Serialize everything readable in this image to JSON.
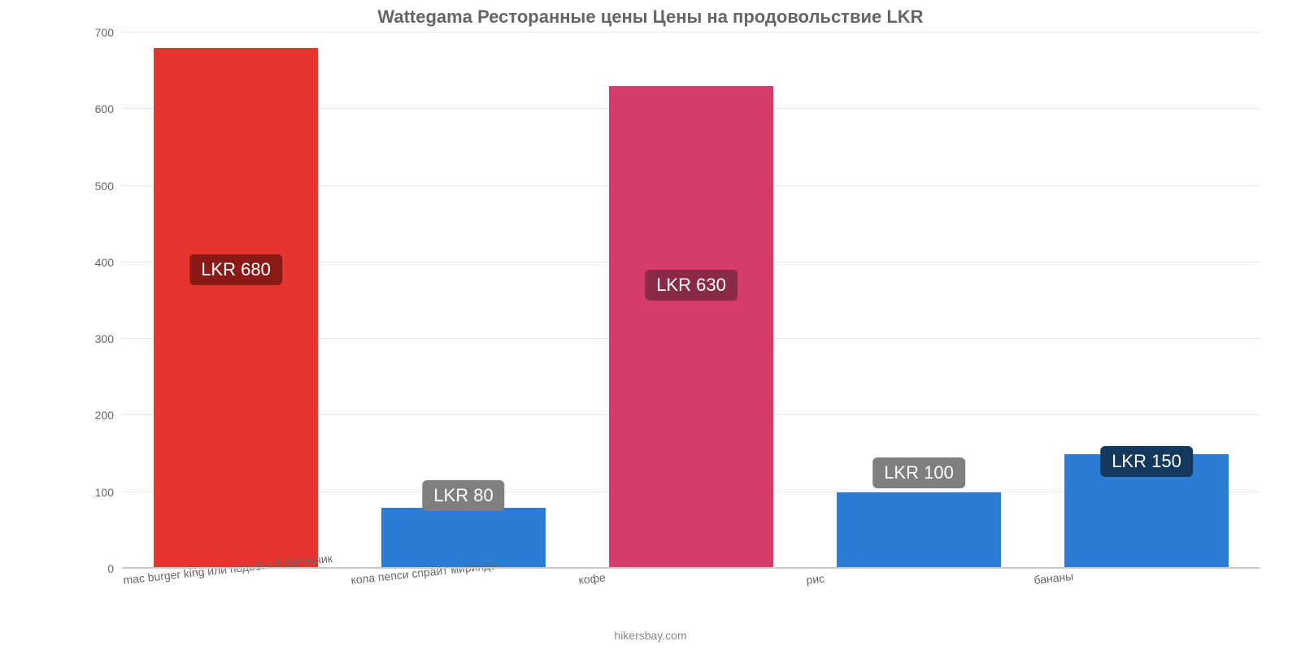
{
  "chart": {
    "type": "bar",
    "title": "Wattegama Ресторанные цены Цены на продовольствие LKR",
    "title_fontsize": 22,
    "title_color": "#666666",
    "background_color": "#ffffff",
    "grid_color": "#e6e6e6",
    "baseline_color": "#cccccc",
    "ylim_min": 0,
    "ylim_max": 700,
    "ytick_step": 100,
    "yticks": [
      0,
      100,
      200,
      300,
      400,
      500,
      600,
      700
    ],
    "tick_color": "#666666",
    "tick_fontsize": 14,
    "bar_width_pct": 72,
    "xlabel_rotation_deg": -6,
    "attribution": "hikersbay.com",
    "badge_fontsize": 22,
    "bars": [
      {
        "category": "mac burger king или подобный батончик",
        "value": 680,
        "bar_color": "#e8342f",
        "badge_text": "LKR 680",
        "badge_bg": "#8b1a17",
        "badge_y_value": 370
      },
      {
        "category": "кола пепси спрайт миринда",
        "value": 80,
        "bar_color": "#2b7cd3",
        "badge_text": "LKR 80",
        "badge_bg": "#7f7f7f",
        "badge_y_value": 75
      },
      {
        "category": "кофе",
        "value": 630,
        "bar_color": "#d63c6a",
        "badge_text": "LKR 630",
        "badge_bg": "#8a2a47",
        "badge_y_value": 350
      },
      {
        "category": "рис",
        "value": 100,
        "bar_color": "#2b7cd3",
        "badge_text": "LKR 100",
        "badge_bg": "#7f7f7f",
        "badge_y_value": 105
      },
      {
        "category": "бананы",
        "value": 150,
        "bar_color": "#2b7cd3",
        "badge_text": "LKR 150",
        "badge_bg": "#13395e",
        "badge_y_value": 120
      }
    ]
  }
}
